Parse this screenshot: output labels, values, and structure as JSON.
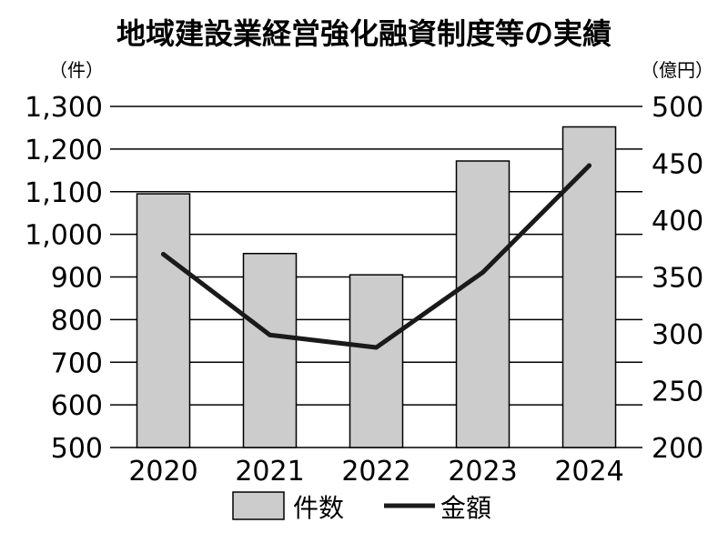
{
  "chart_data": {
    "type": "bar",
    "title": "地域建設業経営強化融資制度等の実績",
    "categories": [
      "2020",
      "2021",
      "2022",
      "2023",
      "2024"
    ],
    "y_left_unit": "（件）",
    "y_right_unit": "（億円）",
    "y_left_lim": [
      500,
      1300
    ],
    "y_left_ticks": [
      "500",
      "600",
      "700",
      "800",
      "900",
      "1,000",
      "1,100",
      "1,200",
      "1,300"
    ],
    "y_right_lim": [
      200,
      500
    ],
    "y_right_ticks": [
      "200",
      "250",
      "300",
      "350",
      "400",
      "450",
      "500"
    ],
    "grid": true,
    "legend_position": "bottom",
    "series": [
      {
        "name": "件数",
        "type": "bar",
        "axis": "left",
        "color": "#cccccc",
        "values": [
          1095,
          955,
          905,
          1172,
          1252
        ]
      },
      {
        "name": "金額",
        "type": "line",
        "axis": "right",
        "color": "#1a1a1a",
        "values": [
          370,
          299,
          288,
          354,
          448
        ]
      }
    ]
  }
}
